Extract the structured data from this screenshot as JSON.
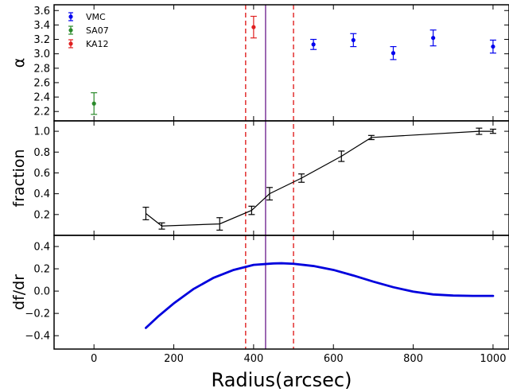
{
  "chart_data": [
    {
      "type": "scatter",
      "panel": "top",
      "ylabel": "α",
      "xlim": [
        -100,
        1040
      ],
      "ylim": [
        2.07,
        3.68
      ],
      "yticks": [
        2.2,
        2.4,
        2.6,
        2.8,
        3.0,
        3.2,
        3.4,
        3.6
      ],
      "ytick_labels": [
        "2.2",
        "2.4",
        "2.6",
        "2.8",
        "3.0",
        "3.2",
        "3.4",
        "3.6"
      ],
      "legend_position": "top-left",
      "series": [
        {
          "name": "VMC",
          "color": "#0000ee",
          "x": [
            550,
            650,
            750,
            850,
            1000
          ],
          "y": [
            3.13,
            3.19,
            3.01,
            3.22,
            3.1
          ],
          "yerr": [
            0.07,
            0.09,
            0.09,
            0.11,
            0.09
          ]
        },
        {
          "name": "SA07",
          "color": "#2a8a2a",
          "x": [
            0
          ],
          "y": [
            2.31
          ],
          "yerr": [
            0.15
          ]
        },
        {
          "name": "KA12",
          "color": "#e02020",
          "x": [
            400
          ],
          "y": [
            3.37
          ],
          "yerr": [
            0.15
          ]
        }
      ]
    },
    {
      "type": "line",
      "panel": "middle",
      "ylabel": "fraction",
      "xlim": [
        -100,
        1040
      ],
      "ylim": [
        0.0,
        1.1
      ],
      "yticks": [
        0.2,
        0.4,
        0.6,
        0.8,
        1.0
      ],
      "ytick_labels": [
        "0.2",
        "0.4",
        "0.6",
        "0.8",
        "1.0"
      ],
      "series": [
        {
          "color": "#000000",
          "x": [
            130,
            170,
            315,
            395,
            440,
            520,
            620,
            695,
            965,
            1000
          ],
          "y": [
            0.21,
            0.09,
            0.11,
            0.24,
            0.4,
            0.55,
            0.76,
            0.94,
            1.0,
            1.0
          ],
          "yerr": [
            0.06,
            0.03,
            0.06,
            0.04,
            0.06,
            0.04,
            0.05,
            0.02,
            0.03,
            0.02
          ]
        }
      ]
    },
    {
      "type": "line",
      "panel": "bottom",
      "ylabel": "df/dr",
      "xlabel": "Radius(arcsec)",
      "xlim": [
        -100,
        1040
      ],
      "ylim": [
        -0.52,
        0.5
      ],
      "yticks": [
        -0.4,
        -0.2,
        0.0,
        0.2,
        0.4
      ],
      "ytick_labels": [
        "−0.4",
        "−0.2",
        "0.0",
        "0.2",
        "0.4"
      ],
      "xticks": [
        0,
        200,
        400,
        600,
        800,
        1000
      ],
      "xtick_labels": [
        "0",
        "200",
        "400",
        "600",
        "800",
        "1000"
      ],
      "series": [
        {
          "color": "#0000dd",
          "x": [
            130,
            160,
            200,
            250,
            300,
            350,
            400,
            450,
            470,
            500,
            550,
            600,
            650,
            700,
            750,
            800,
            850,
            900,
            950,
            980,
            1000
          ],
          "y": [
            -0.33,
            -0.23,
            -0.11,
            0.02,
            0.12,
            0.19,
            0.235,
            0.248,
            0.25,
            0.245,
            0.225,
            0.19,
            0.14,
            0.085,
            0.035,
            -0.005,
            -0.03,
            -0.04,
            -0.043,
            -0.043,
            -0.043
          ]
        }
      ]
    }
  ],
  "annotations": {
    "vlines_dashed": {
      "color": "#e02020",
      "x": [
        380,
        500
      ]
    },
    "vline_solid": {
      "color": "#6a1a8a",
      "x": [
        430
      ]
    }
  }
}
